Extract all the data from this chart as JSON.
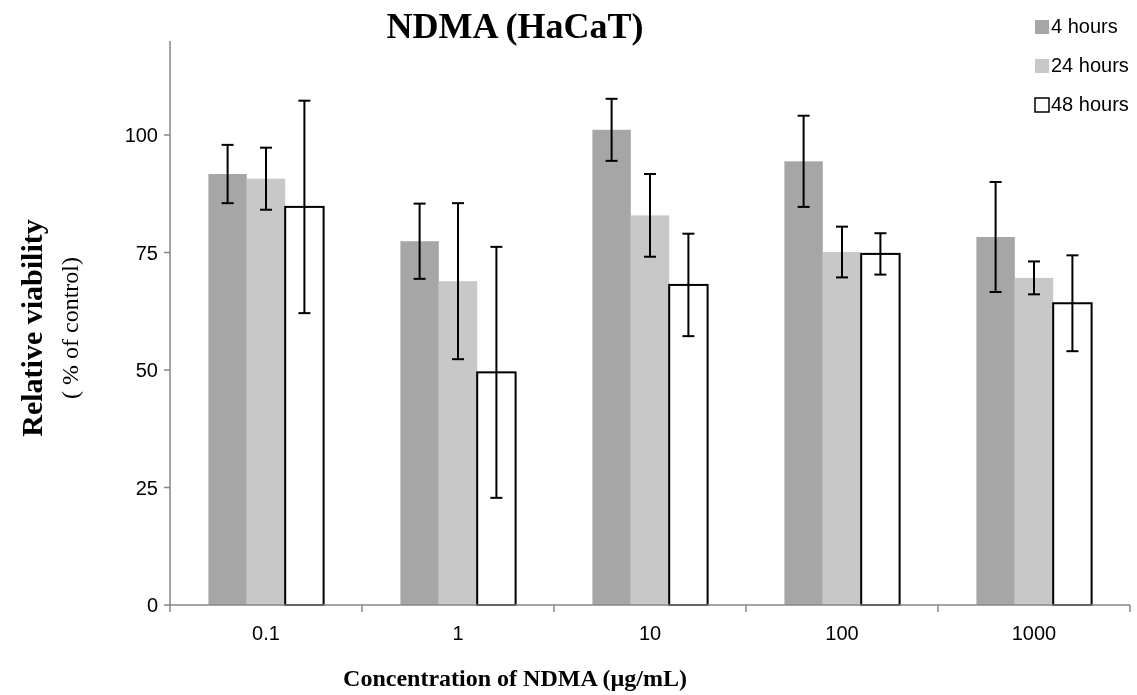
{
  "chart_data": {
    "type": "bar",
    "title": "NDMA (HaCaT)",
    "xlabel": "Concentration of NDMA (µg/mL)",
    "ylabel": "Relative viability\n( % of control)",
    "categories": [
      "0.1",
      "1",
      "10",
      "100",
      "1000"
    ],
    "series": [
      {
        "name": "4 hours",
        "color": "#a6a6a6",
        "values": [
          91.7,
          77.4,
          101.1,
          94.4,
          78.3
        ],
        "errors": [
          6.2,
          8.0,
          6.6,
          9.7,
          11.7
        ]
      },
      {
        "name": "24 hours",
        "color": "#c8c8c8",
        "values": [
          90.7,
          68.9,
          82.9,
          75.1,
          69.6
        ],
        "errors": [
          6.6,
          16.6,
          8.8,
          5.4,
          3.5
        ]
      },
      {
        "name": "48 hours",
        "color": "#ffffff",
        "values": [
          84.7,
          49.5,
          68.1,
          74.7,
          64.2
        ],
        "errors": [
          22.6,
          26.7,
          10.9,
          4.4,
          10.2
        ]
      }
    ],
    "ylim": [
      0,
      120
    ],
    "yticks": [
      0,
      25,
      50,
      75,
      100
    ],
    "grid": false,
    "legend": "top right"
  }
}
